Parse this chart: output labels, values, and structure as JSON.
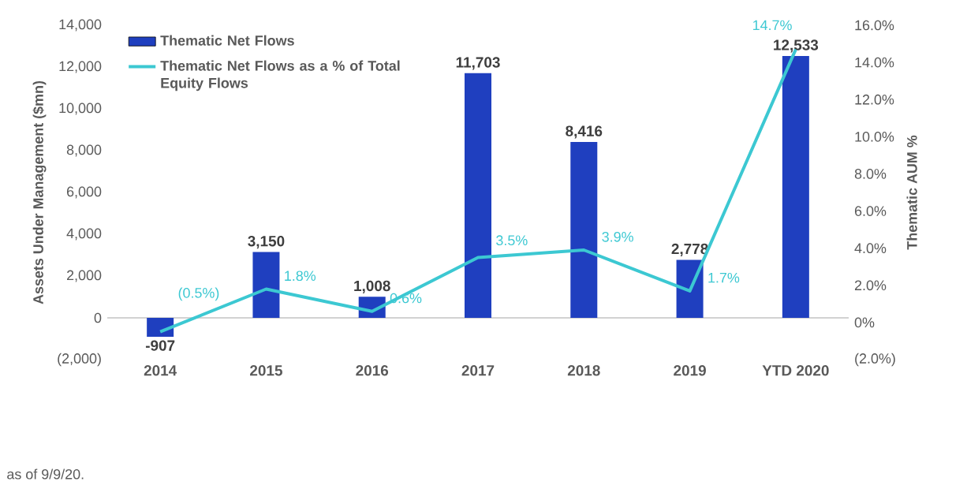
{
  "chart_data": {
    "type": "bar",
    "categories": [
      "2014",
      "2015",
      "2016",
      "2017",
      "2018",
      "2019",
      "YTD 2020"
    ],
    "series": [
      {
        "name": "Thematic Net Flows",
        "color": "#1f3fbf",
        "values": [
          -907,
          3150,
          1008,
          11703,
          8416,
          2778,
          12533
        ],
        "value_labels": [
          "-907",
          "3,150",
          "1,008",
          "11,703",
          "8,416",
          "2,778",
          "12,533"
        ]
      },
      {
        "name": "Thematic Net Flows as a % of Total Equity Flows",
        "type": "line",
        "axis": "y2",
        "color": "#3cc8d2",
        "values": [
          -0.5,
          1.8,
          0.6,
          3.5,
          3.9,
          1.7,
          14.7
        ],
        "value_labels": [
          "(0.5%)",
          "1.8%",
          "0.6%",
          "3.5%",
          "3.9%",
          "1.7%",
          "14.7%"
        ]
      }
    ],
    "ylabel": "Assets Under Management ($mn)",
    "y2label": "Thematic AUM %",
    "ylim": [
      -2000,
      14000
    ],
    "yticks": [
      {
        "value": -2000,
        "label": "(2,000)"
      },
      0,
      {
        "value": 2000,
        "label": "2,000"
      },
      {
        "value": 4000,
        "label": "4,000"
      },
      {
        "value": 6000,
        "label": "6,000"
      },
      {
        "value": 8000,
        "label": "8,000"
      },
      {
        "value": 10000,
        "label": "10,000"
      },
      {
        "value": 12000,
        "label": "12,000"
      },
      {
        "value": 14000,
        "label": "14,000"
      }
    ],
    "y2lim": [
      -2,
      16
    ],
    "y2ticks": [
      {
        "value": -2,
        "label": "(2.0%)"
      },
      {
        "value": 0,
        "label": "0%"
      },
      {
        "value": 2,
        "label": "2.0%"
      },
      {
        "value": 4,
        "label": "4.0%"
      },
      {
        "value": 6,
        "label": "6.0%"
      },
      {
        "value": 8,
        "label": "8.0%"
      },
      {
        "value": 10,
        "label": "10.0%"
      },
      {
        "value": 12,
        "label": "12.0%"
      },
      {
        "value": 14,
        "label": "14.0%"
      },
      {
        "value": 16,
        "label": "16.0%"
      }
    ],
    "legend": "top left",
    "annotations": [
      "as of 9/9/20."
    ]
  }
}
